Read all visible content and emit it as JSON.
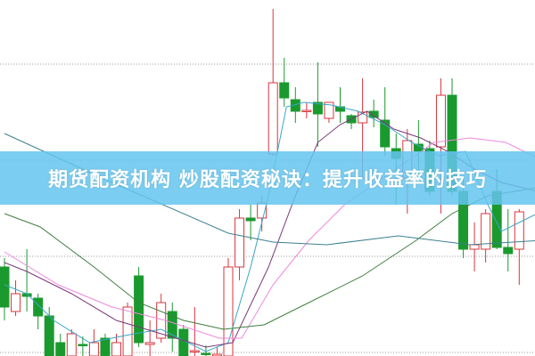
{
  "banner": {
    "title": "期货配资机构 炒股配资秘诀：提升收益率的技巧"
  },
  "colors": {
    "up": "#d9363e",
    "down": "#1a9a2e",
    "ma5": "#3aa6c8",
    "ma10": "#7a3a7a",
    "ma20": "#ee88dd",
    "ma60": "#3f7f3f",
    "ma120": "#3c8090",
    "grid": "#999999",
    "banner": "#64c4ee"
  },
  "chart_data": {
    "type": "candlestick",
    "title": "",
    "grid": "dotted horizontal",
    "candles": [
      {
        "o": 100,
        "c": 55,
        "h": 110,
        "l": 40
      },
      {
        "o": 50,
        "c": 70,
        "h": 85,
        "l": 45
      },
      {
        "o": 70,
        "c": 67,
        "h": 120,
        "l": 50
      },
      {
        "o": 65,
        "c": 45,
        "h": 70,
        "l": 30
      },
      {
        "o": 45,
        "c": 0,
        "h": 55,
        "l": 0
      },
      {
        "o": 15,
        "c": 0,
        "h": 25,
        "l": 0
      },
      {
        "o": 0,
        "c": 25,
        "h": 30,
        "l": 0
      },
      {
        "o": 13,
        "c": 12,
        "h": 22,
        "l": 0
      },
      {
        "o": 0,
        "c": 15,
        "h": 30,
        "l": 0
      },
      {
        "o": 20,
        "c": 0,
        "h": 25,
        "l": 0
      },
      {
        "o": 0,
        "c": 15,
        "h": 25,
        "l": 0
      },
      {
        "o": 0,
        "c": 55,
        "h": 60,
        "l": 0
      },
      {
        "o": 90,
        "c": 15,
        "h": 100,
        "l": 10
      },
      {
        "o": 13,
        "c": 15,
        "h": 40,
        "l": 0
      },
      {
        "o": 20,
        "c": 60,
        "h": 70,
        "l": 15
      },
      {
        "o": 50,
        "c": 20,
        "h": 60,
        "l": 5
      },
      {
        "o": 30,
        "c": 0,
        "h": 35,
        "l": 0
      },
      {
        "o": 5,
        "c": 6,
        "h": 55,
        "l": 0
      },
      {
        "o": 3,
        "c": 2,
        "h": 12,
        "l": 0
      },
      {
        "o": 0,
        "c": 2,
        "h": 10,
        "l": 0
      },
      {
        "o": 0,
        "c": 100,
        "h": 110,
        "l": 0
      },
      {
        "o": 100,
        "c": 155,
        "h": 165,
        "l": 85
      },
      {
        "o": 155,
        "c": 152,
        "h": 170,
        "l": 130
      },
      {
        "o": 155,
        "c": 172,
        "h": 180,
        "l": 140
      },
      {
        "o": 227,
        "c": 307,
        "h": 390,
        "l": 225
      },
      {
        "o": 307,
        "c": 290,
        "h": 335,
        "l": 280
      },
      {
        "o": 288,
        "c": 275,
        "h": 302,
        "l": 262
      },
      {
        "o": 275,
        "c": 276,
        "h": 285,
        "l": 267
      },
      {
        "o": 285,
        "c": 272,
        "h": 330,
        "l": 235
      },
      {
        "o": 267,
        "c": 285,
        "h": 285,
        "l": 262
      },
      {
        "o": 280,
        "c": 275,
        "h": 302,
        "l": 262
      },
      {
        "o": 270,
        "c": 262,
        "h": 272,
        "l": 255
      },
      {
        "o": 262,
        "c": 274,
        "h": 312,
        "l": 200
      },
      {
        "o": 275,
        "c": 268,
        "h": 288,
        "l": 257
      },
      {
        "o": 265,
        "c": 235,
        "h": 302,
        "l": 225
      },
      {
        "o": 233,
        "c": 222,
        "h": 250,
        "l": 170
      },
      {
        "o": 200,
        "c": 242,
        "h": 255,
        "l": 160
      },
      {
        "o": 238,
        "c": 230,
        "h": 265,
        "l": 205
      },
      {
        "o": 233,
        "c": 185,
        "h": 242,
        "l": 180
      },
      {
        "o": 235,
        "c": 293,
        "h": 312,
        "l": 160
      },
      {
        "o": 293,
        "c": 185,
        "h": 312,
        "l": 180
      },
      {
        "o": 185,
        "c": 120,
        "h": 200,
        "l": 110
      },
      {
        "o": 120,
        "c": 125,
        "h": 150,
        "l": 95
      },
      {
        "o": 120,
        "c": 160,
        "h": 165,
        "l": 105
      },
      {
        "o": 185,
        "c": 122,
        "h": 210,
        "l": 120
      },
      {
        "o": 122,
        "c": 115,
        "h": 165,
        "l": 95
      },
      {
        "o": 120,
        "c": 162,
        "h": 165,
        "l": 80
      }
    ],
    "moving_averages": [
      {
        "key": "ma5",
        "points": [
          [
            0,
            80
          ],
          [
            2,
            70
          ],
          [
            4.4,
            40
          ],
          [
            7.6,
            15
          ],
          [
            11.6,
            25
          ],
          [
            14,
            30
          ],
          [
            18,
            5
          ],
          [
            20,
            15
          ],
          [
            22,
            100
          ],
          [
            23.6,
            180
          ],
          [
            25.2,
            280
          ],
          [
            26.8,
            285
          ],
          [
            29.2,
            282
          ],
          [
            31.6,
            275
          ],
          [
            34,
            260
          ],
          [
            36.4,
            240
          ],
          [
            38.8,
            225
          ],
          [
            41.2,
            230
          ],
          [
            43.2,
            170
          ],
          [
            44.4,
            140
          ],
          [
            46,
            150
          ],
          [
            47.6,
            160
          ]
        ]
      },
      {
        "key": "ma10",
        "points": [
          [
            0,
            105
          ],
          [
            2,
            95
          ],
          [
            6,
            70
          ],
          [
            10,
            40
          ],
          [
            14,
            25
          ],
          [
            18,
            10
          ],
          [
            20.4,
            15
          ],
          [
            23.6,
            100
          ],
          [
            26,
            180
          ],
          [
            28,
            240
          ],
          [
            30,
            260
          ],
          [
            32.4,
            275
          ],
          [
            34.8,
            255
          ],
          [
            37.2,
            245
          ],
          [
            39.6,
            230
          ],
          [
            42,
            210
          ],
          [
            44.4,
            195
          ],
          [
            47.6,
            185
          ]
        ]
      },
      {
        "key": "ma20",
        "points": [
          [
            0,
            117
          ],
          [
            4.8,
            80
          ],
          [
            9.6,
            55
          ],
          [
            14.4,
            40
          ],
          [
            19.2,
            20
          ],
          [
            21.2,
            20
          ],
          [
            24,
            80
          ],
          [
            27.2,
            130
          ],
          [
            30.4,
            170
          ],
          [
            34.4,
            205
          ],
          [
            38.4,
            240
          ],
          [
            41.6,
            245
          ],
          [
            44.8,
            240
          ],
          [
            48,
            220
          ]
        ]
      },
      {
        "key": "ma60",
        "points": [
          [
            0,
            160
          ],
          [
            3.2,
            145
          ],
          [
            8,
            100
          ],
          [
            12,
            60
          ],
          [
            16,
            40
          ],
          [
            19.6,
            30
          ],
          [
            23.2,
            35
          ],
          [
            27.2,
            60
          ],
          [
            32,
            90
          ],
          [
            36.8,
            130
          ],
          [
            40,
            160
          ],
          [
            43.2,
            180
          ],
          [
            48,
            190
          ]
        ]
      },
      {
        "key": "ma120",
        "points": [
          [
            0,
            250
          ],
          [
            9.6,
            195
          ],
          [
            20,
            138
          ],
          [
            24,
            128
          ],
          [
            28.8,
            125
          ],
          [
            35.2,
            135
          ],
          [
            41.6,
            125
          ],
          [
            48,
            130
          ]
        ]
      }
    ]
  }
}
